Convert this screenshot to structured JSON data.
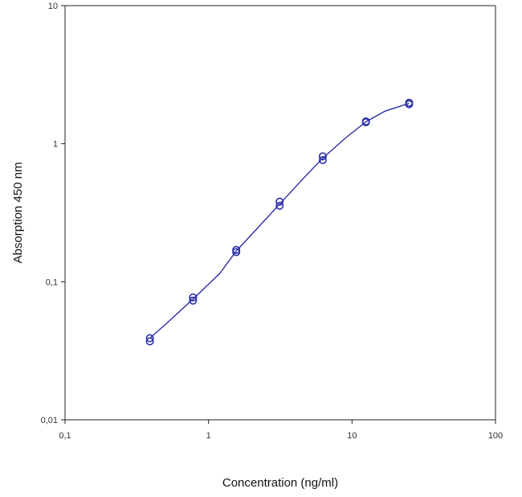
{
  "chart_data": {
    "type": "scatter",
    "title": "",
    "xlabel": "Concentration (ng/ml)",
    "ylabel": "Absorption 450 nm",
    "x_scale": "log",
    "y_scale": "log",
    "xlim": [
      0.1,
      100
    ],
    "ylim": [
      0.01,
      10
    ],
    "x_ticks": [
      0.1,
      1,
      10,
      100
    ],
    "x_tick_labels": [
      "0,1",
      "1",
      "10",
      "100"
    ],
    "y_ticks": [
      0.01,
      0.1,
      1,
      10
    ],
    "y_tick_labels": [
      "0,01",
      "0,1",
      "1",
      "10"
    ],
    "grid": false,
    "legend": "none",
    "marker": "open-circle",
    "color": "#2b2fa6",
    "points": [
      {
        "x": 0.39,
        "y": 0.039
      },
      {
        "x": 0.39,
        "y": 0.037
      },
      {
        "x": 0.78,
        "y": 0.077
      },
      {
        "x": 0.78,
        "y": 0.073
      },
      {
        "x": 1.56,
        "y": 0.17
      },
      {
        "x": 1.56,
        "y": 0.164
      },
      {
        "x": 3.13,
        "y": 0.38
      },
      {
        "x": 3.13,
        "y": 0.355
      },
      {
        "x": 6.25,
        "y": 0.81
      },
      {
        "x": 6.25,
        "y": 0.76
      },
      {
        "x": 12.5,
        "y": 1.45
      },
      {
        "x": 12.5,
        "y": 1.43
      },
      {
        "x": 25,
        "y": 1.98
      },
      {
        "x": 25,
        "y": 1.93
      }
    ],
    "fit_curve": {
      "x": [
        0.39,
        0.5,
        0.78,
        1.2,
        1.56,
        2.2,
        3.13,
        4.5,
        6.25,
        9,
        12.5,
        17,
        25
      ],
      "y": [
        0.039,
        0.049,
        0.075,
        0.115,
        0.167,
        0.245,
        0.365,
        0.55,
        0.785,
        1.1,
        1.44,
        1.72,
        1.96
      ]
    }
  }
}
